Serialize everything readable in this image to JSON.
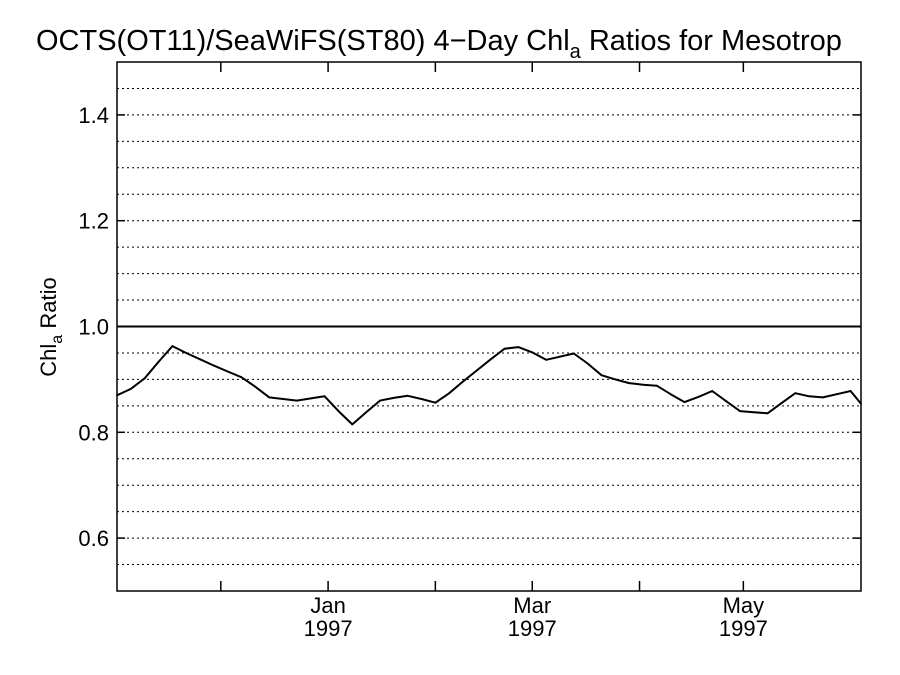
{
  "chart_data": {
    "type": "line",
    "title": {
      "prefix": "OCTS(OT11)/SeaWiFS(ST80) 4−Day Chl",
      "subscript": "a",
      "suffix": " Ratios for Mesotrop"
    },
    "ylabel": {
      "prefix": "Chl",
      "subscript": "a",
      "suffix": " Ratio"
    },
    "xlabel": "",
    "x_range": [
      "1996-11-01",
      "1997-06-04"
    ],
    "ylim": [
      0.5,
      1.5
    ],
    "y_ticks": [
      0.6,
      0.8,
      1.0,
      1.2,
      1.4
    ],
    "y_tick_labels": [
      "0.6",
      "0.8",
      "1.0",
      "1.2",
      "1.4"
    ],
    "y_minor_gridlines": [
      0.55,
      0.6,
      0.65,
      0.7,
      0.75,
      0.8,
      0.85,
      0.9,
      0.95,
      1.05,
      1.1,
      1.15,
      1.2,
      1.25,
      1.3,
      1.35,
      1.4,
      1.45
    ],
    "x_ticks": [
      {
        "date": "1996-12-01",
        "month": "",
        "year": ""
      },
      {
        "date": "1997-01-01",
        "month": "Jan",
        "year": "1997"
      },
      {
        "date": "1997-02-01",
        "month": "",
        "year": ""
      },
      {
        "date": "1997-03-01",
        "month": "Mar",
        "year": "1997"
      },
      {
        "date": "1997-04-01",
        "month": "",
        "year": ""
      },
      {
        "date": "1997-05-01",
        "month": "May",
        "year": "1997"
      }
    ],
    "reference_line": 1.0,
    "grid": true,
    "series": [
      {
        "x": [
          "1996-11-01",
          "1996-11-05",
          "1996-11-09",
          "1996-11-13",
          "1996-11-17",
          "1996-11-21",
          "1996-11-25",
          "1996-11-29",
          "1996-12-03",
          "1996-12-07",
          "1996-12-11",
          "1996-12-15",
          "1996-12-19",
          "1996-12-23",
          "1996-12-27",
          "1996-12-31",
          "1997-01-04",
          "1997-01-08",
          "1997-01-12",
          "1997-01-16",
          "1997-01-20",
          "1997-01-24",
          "1997-01-28",
          "1997-02-01",
          "1997-02-05",
          "1997-02-09",
          "1997-02-13",
          "1997-02-17",
          "1997-02-21",
          "1997-02-25",
          "1997-03-01",
          "1997-03-05",
          "1997-03-09",
          "1997-03-13",
          "1997-03-17",
          "1997-03-21",
          "1997-03-25",
          "1997-03-29",
          "1997-04-02",
          "1997-04-06",
          "1997-04-10",
          "1997-04-14",
          "1997-04-18",
          "1997-04-22",
          "1997-04-26",
          "1997-04-30",
          "1997-05-04",
          "1997-05-08",
          "1997-05-12",
          "1997-05-16",
          "1997-05-20",
          "1997-05-24",
          "1997-05-28",
          "1997-06-01",
          "1997-06-04"
        ],
        "y": [
          0.87,
          0.882,
          0.902,
          0.933,
          0.963,
          0.95,
          0.938,
          0.926,
          0.915,
          0.904,
          0.886,
          0.866,
          0.863,
          0.86,
          0.864,
          0.868,
          0.84,
          0.815,
          0.838,
          0.86,
          0.865,
          0.869,
          0.863,
          0.856,
          0.874,
          0.896,
          0.917,
          0.938,
          0.958,
          0.961,
          0.951,
          0.937,
          0.943,
          0.949,
          0.93,
          0.908,
          0.9,
          0.893,
          0.89,
          0.888,
          0.872,
          0.857,
          0.867,
          0.878,
          0.859,
          0.84,
          0.838,
          0.836,
          0.855,
          0.874,
          0.868,
          0.866,
          0.872,
          0.878,
          0.854
        ]
      }
    ]
  }
}
